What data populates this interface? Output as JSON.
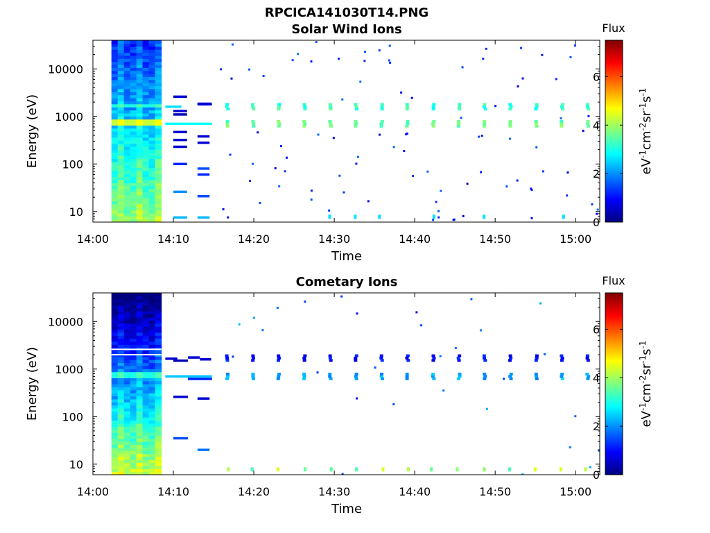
{
  "figure": {
    "title": "RPCICA141030T14.PNG"
  },
  "colorbar_palette": [
    "#00007f",
    "#0000ff",
    "#007fff",
    "#00ffff",
    "#7fff7f",
    "#ffff00",
    "#ff7f00",
    "#ff0000",
    "#7f0000"
  ],
  "chart_data": [
    {
      "type": "heatmap",
      "title": "Solar Wind Ions",
      "xlabel": "Time",
      "ylabel": "Energy (eV)",
      "x_range": [
        "14:00",
        "15:03"
      ],
      "x_ticks": [
        "14:00",
        "14:10",
        "14:20",
        "14:30",
        "14:40",
        "14:50",
        "15:00"
      ],
      "y_scale": "log",
      "y_range": [
        6,
        40000
      ],
      "y_ticks": [
        "10",
        "100",
        "1000",
        "10000"
      ],
      "colorbar": {
        "title": "Flux",
        "label": "eV-1cm-2sr-1s-1",
        "range": [
          0,
          7.5
        ],
        "ticks": [
          "0",
          "2",
          "4",
          "6"
        ]
      },
      "features": {
        "dense_block": {
          "t_start_min": 2.3,
          "t_end_min": 8.5,
          "note": "broad flux across all energies"
        },
        "main_band_eV": 700,
        "secondary_band_eV": 1600,
        "sweep_bursts_start_min": 16.5,
        "sweep_period_min": 3.2,
        "sweep_end_min": 62.5
      }
    },
    {
      "type": "heatmap",
      "title": "Cometary Ions",
      "xlabel": "Time",
      "ylabel": "Energy (eV)",
      "x_range": [
        "14:00",
        "15:03"
      ],
      "x_ticks": [
        "14:00",
        "14:10",
        "14:20",
        "14:30",
        "14:40",
        "14:50",
        "15:00"
      ],
      "y_scale": "log",
      "y_range": [
        6,
        40000
      ],
      "y_ticks": [
        "10",
        "100",
        "1000",
        "10000"
      ],
      "colorbar": {
        "title": "Flux",
        "label": "eV-1cm-2sr-1s-1",
        "range": [
          0,
          7.5
        ],
        "ticks": [
          "0",
          "2",
          "4",
          "6"
        ]
      },
      "features": {
        "dense_block": {
          "t_start_min": 2.3,
          "t_end_min": 8.5,
          "note": "mostly low flux at high energy, higher at low energy"
        },
        "main_band_eV": 700,
        "secondary_band_eV": 1600,
        "low_energy_hits_eV": 7,
        "sweep_bursts_start_min": 16.5,
        "sweep_period_min": 3.2,
        "sweep_end_min": 62.5
      }
    }
  ]
}
